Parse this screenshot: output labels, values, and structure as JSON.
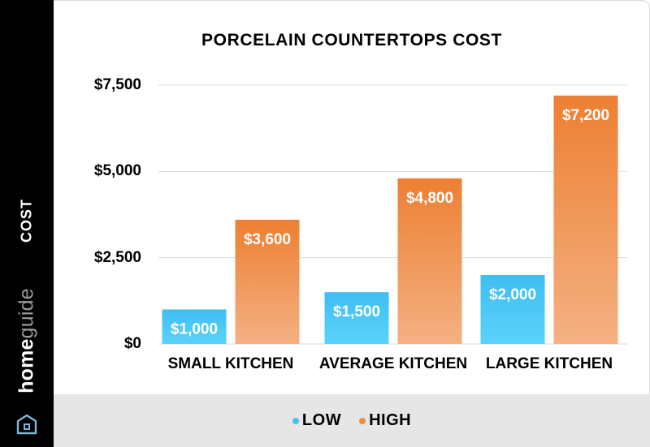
{
  "brand": {
    "name_bold": "home",
    "name_light": "guide"
  },
  "colors": {
    "low": "#44c3f3",
    "high": "#ef8a3e",
    "background": "#ffffff",
    "band": "#000000",
    "legend_band": "#e6e6e6"
  },
  "chart_data": {
    "type": "bar",
    "title": "PORCELAIN COUNTERTOPS COST",
    "ylabel": "COST",
    "xlabel": "",
    "categories": [
      "SMALL KITCHEN",
      "AVERAGE KITCHEN",
      "LARGE KITCHEN"
    ],
    "series": [
      {
        "name": "LOW",
        "values": [
          1000,
          1500,
          2000
        ],
        "labels": [
          "$1,000",
          "$1,500",
          "$2,000"
        ]
      },
      {
        "name": "HIGH",
        "values": [
          3600,
          4800,
          7200
        ],
        "labels": [
          "$3,600",
          "$4,800",
          "$7,200"
        ]
      }
    ],
    "ylim": [
      0,
      7500
    ],
    "yticks": [
      0,
      2500,
      5000,
      7500
    ],
    "ytick_labels": [
      "$0",
      "$2,500",
      "$5,000",
      "$7,500"
    ],
    "grid": true,
    "legend_position": "bottom"
  }
}
